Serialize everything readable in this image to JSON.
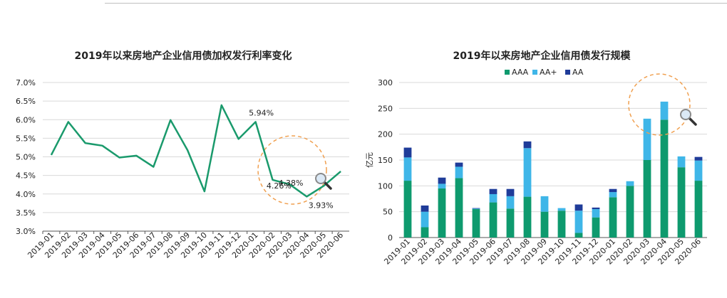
{
  "chart_data": [
    {
      "type": "line",
      "title": "2019年以来房地产企业信用债加权发行利率变化",
      "xlabel": "",
      "ylabel": "",
      "categories": [
        "2019-01",
        "2019-02",
        "2019-03",
        "2019-04",
        "2019-05",
        "2019-06",
        "2019-07",
        "2019-08",
        "2019-09",
        "2019-10",
        "2019-11",
        "2019-12",
        "2020-01",
        "2020-02",
        "2020-03",
        "2020-04",
        "2020-05",
        "2020-06"
      ],
      "values": [
        5.05,
        5.94,
        5.37,
        5.3,
        4.98,
        5.03,
        4.73,
        5.99,
        5.18,
        4.07,
        6.39,
        5.48,
        5.94,
        4.38,
        4.26,
        3.93,
        4.22,
        4.61
      ],
      "ylim": [
        3.0,
        7.0
      ],
      "yticks": [
        "3.0%",
        "3.5%",
        "4.0%",
        "4.5%",
        "5.0%",
        "5.5%",
        "6.0%",
        "6.5%",
        "7.0%"
      ],
      "grid": true,
      "line_color": "#1a9a6c",
      "annotations": [
        {
          "index": 12,
          "text": "5.94%"
        },
        {
          "index": 13,
          "text": "4.38%"
        },
        {
          "index": 14,
          "text": "4.26%"
        },
        {
          "index": 15,
          "text": "3.93%"
        }
      ],
      "highlight": {
        "shape": "dashed-circle",
        "color": "#f0a050",
        "icon": "magnifier-icon"
      }
    },
    {
      "type": "bar",
      "stacked": true,
      "title": "2019年以来房地产企业信用债发行规模",
      "ylabel": "亿元",
      "xlabel": "",
      "categories": [
        "2019-01",
        "2019-02",
        "2019-03",
        "2019-04",
        "2019-05",
        "2019-06",
        "2019-07",
        "2019-08",
        "2019-09",
        "2019-10",
        "2019-11",
        "2019-12",
        "2020-01",
        "2020-02",
        "2020-03",
        "2020-04",
        "2020-05",
        "2020-06"
      ],
      "series": [
        {
          "name": "AAA",
          "color": "#0e9a6e",
          "values": [
            110,
            20,
            95,
            115,
            55,
            68,
            56,
            79,
            50,
            52,
            9,
            39,
            78,
            100,
            150,
            228,
            136,
            110
          ]
        },
        {
          "name": "AA+",
          "color": "#3fb6e8",
          "values": [
            45,
            30,
            9,
            22,
            1,
            16,
            24,
            94,
            30,
            5,
            43,
            16,
            10,
            9,
            80,
            35,
            21,
            39
          ]
        },
        {
          "name": "AA",
          "color": "#1f3c99",
          "values": [
            19,
            12,
            12,
            8,
            1,
            10,
            14,
            13,
            0,
            0,
            12,
            3,
            6,
            0,
            0,
            0,
            0,
            7
          ]
        }
      ],
      "ylim": [
        0,
        300
      ],
      "yticks": [
        "0",
        "50",
        "100",
        "150",
        "200",
        "250",
        "300"
      ],
      "grid": true,
      "legend_position": "top-center",
      "highlight": {
        "shape": "dashed-circle",
        "color": "#f0a050",
        "icon": "magnifier-icon"
      }
    }
  ]
}
